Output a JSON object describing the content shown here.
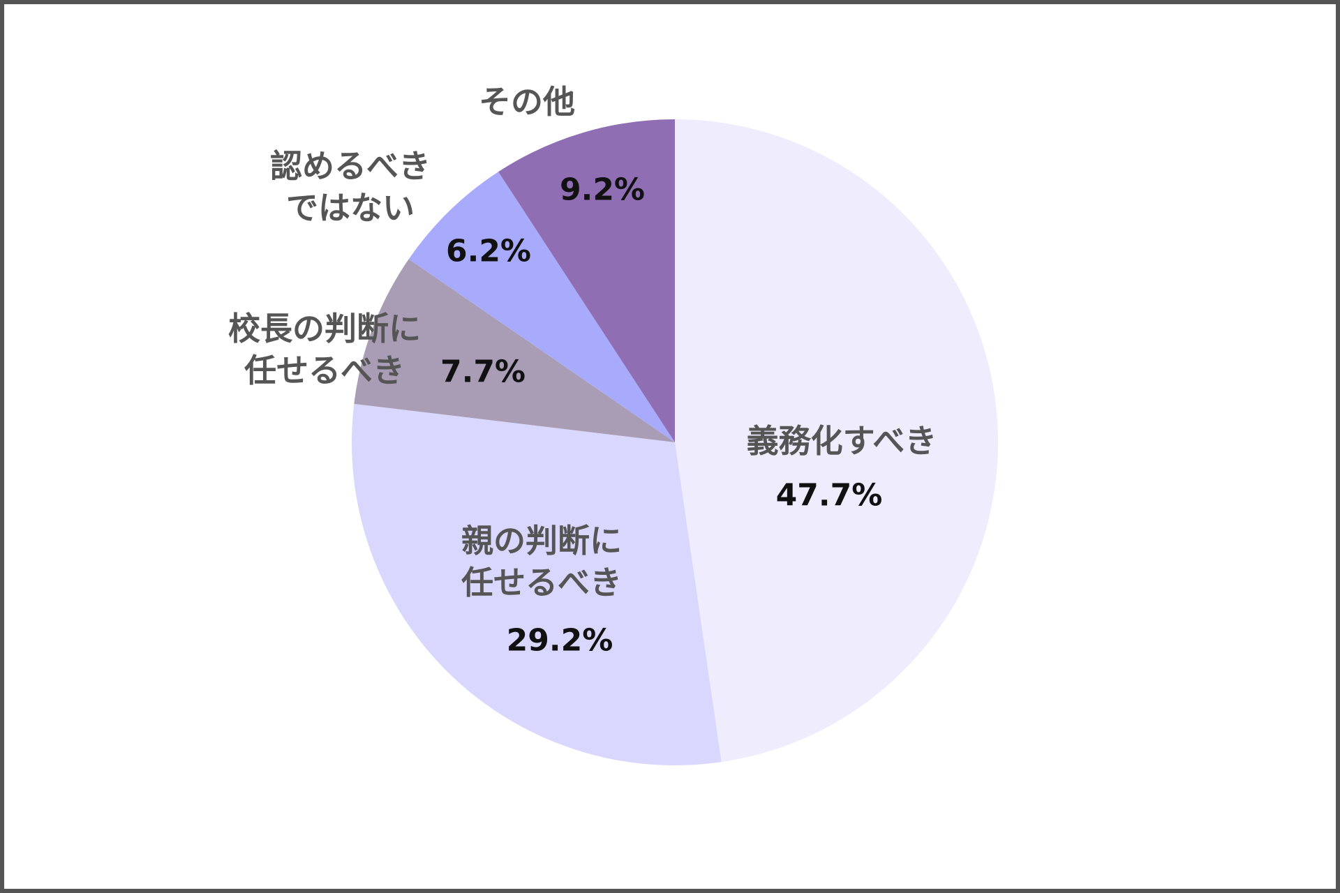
{
  "chart_data": {
    "type": "pie",
    "categories": [
      "義務化すべき",
      "親の判断に\n任せるべき",
      "校長の判断に\n任せるべき",
      "認めるべき\nではない",
      "その他"
    ],
    "values": [
      47.7,
      29.2,
      7.7,
      6.2,
      9.2
    ],
    "value_labels": [
      "47.7%",
      "29.2%",
      "7.7%",
      "6.2%",
      "9.2%"
    ],
    "colors": [
      "#eeecfd",
      "#d9d7fd",
      "#a89db5",
      "#a8aafb",
      "#8f6eb3"
    ]
  }
}
